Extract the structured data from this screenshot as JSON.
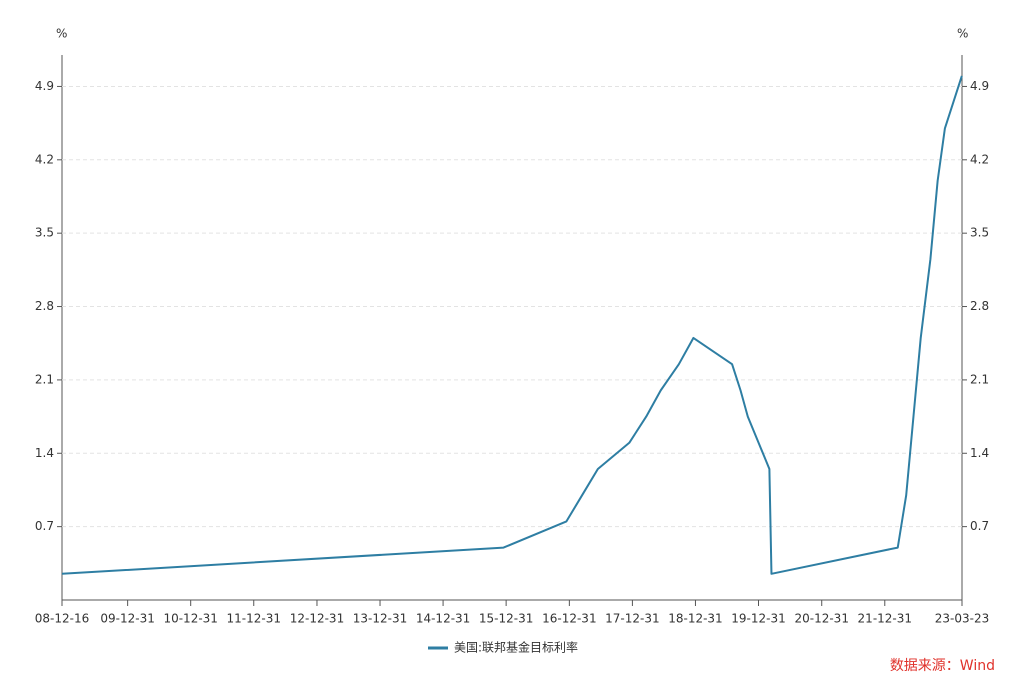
{
  "chart_data": {
    "type": "line",
    "y_label": "%",
    "y2_label": "%",
    "x": [
      "08-12-16",
      "15-12-16",
      "16-12-14",
      "17-03-15",
      "17-06-14",
      "17-12-13",
      "18-03-21",
      "18-06-13",
      "18-09-26",
      "18-12-19",
      "19-07-31",
      "19-09-18",
      "19-10-30",
      "20-03-03",
      "20-03-15",
      "22-03-16",
      "22-05-04",
      "22-06-15",
      "22-07-27",
      "22-09-21",
      "22-11-02",
      "22-12-14",
      "23-02-01",
      "23-03-22"
    ],
    "series": [
      {
        "name": "美国:联邦基金目标利率",
        "color": "#2e7ea3",
        "values": [
          0.25,
          0.5,
          0.75,
          1.0,
          1.25,
          1.5,
          1.75,
          2.0,
          2.25,
          2.5,
          2.25,
          2.0,
          1.75,
          1.25,
          0.25,
          0.5,
          1.0,
          1.75,
          2.5,
          3.25,
          4.0,
          4.5,
          4.75,
          5.0
        ]
      }
    ],
    "xlim": [
      "08-12-16",
      "23-03-23"
    ],
    "xticks": [
      "08-12-16",
      "09-12-31",
      "10-12-31",
      "11-12-31",
      "12-12-31",
      "13-12-31",
      "14-12-31",
      "15-12-31",
      "16-12-31",
      "17-12-31",
      "18-12-31",
      "19-12-31",
      "20-12-31",
      "21-12-31",
      "23-03-23"
    ],
    "ylim": [
      0,
      5.2
    ],
    "yticks": [
      0.7,
      1.4,
      2.1,
      2.8,
      3.5,
      4.2,
      4.9
    ],
    "y2lim": [
      0,
      5.2
    ],
    "y2ticks": [
      0.7,
      1.4,
      2.1,
      2.8,
      3.5,
      4.2,
      4.9
    ],
    "grid": true,
    "legend": "bottom",
    "source": "数据来源：Wind"
  }
}
